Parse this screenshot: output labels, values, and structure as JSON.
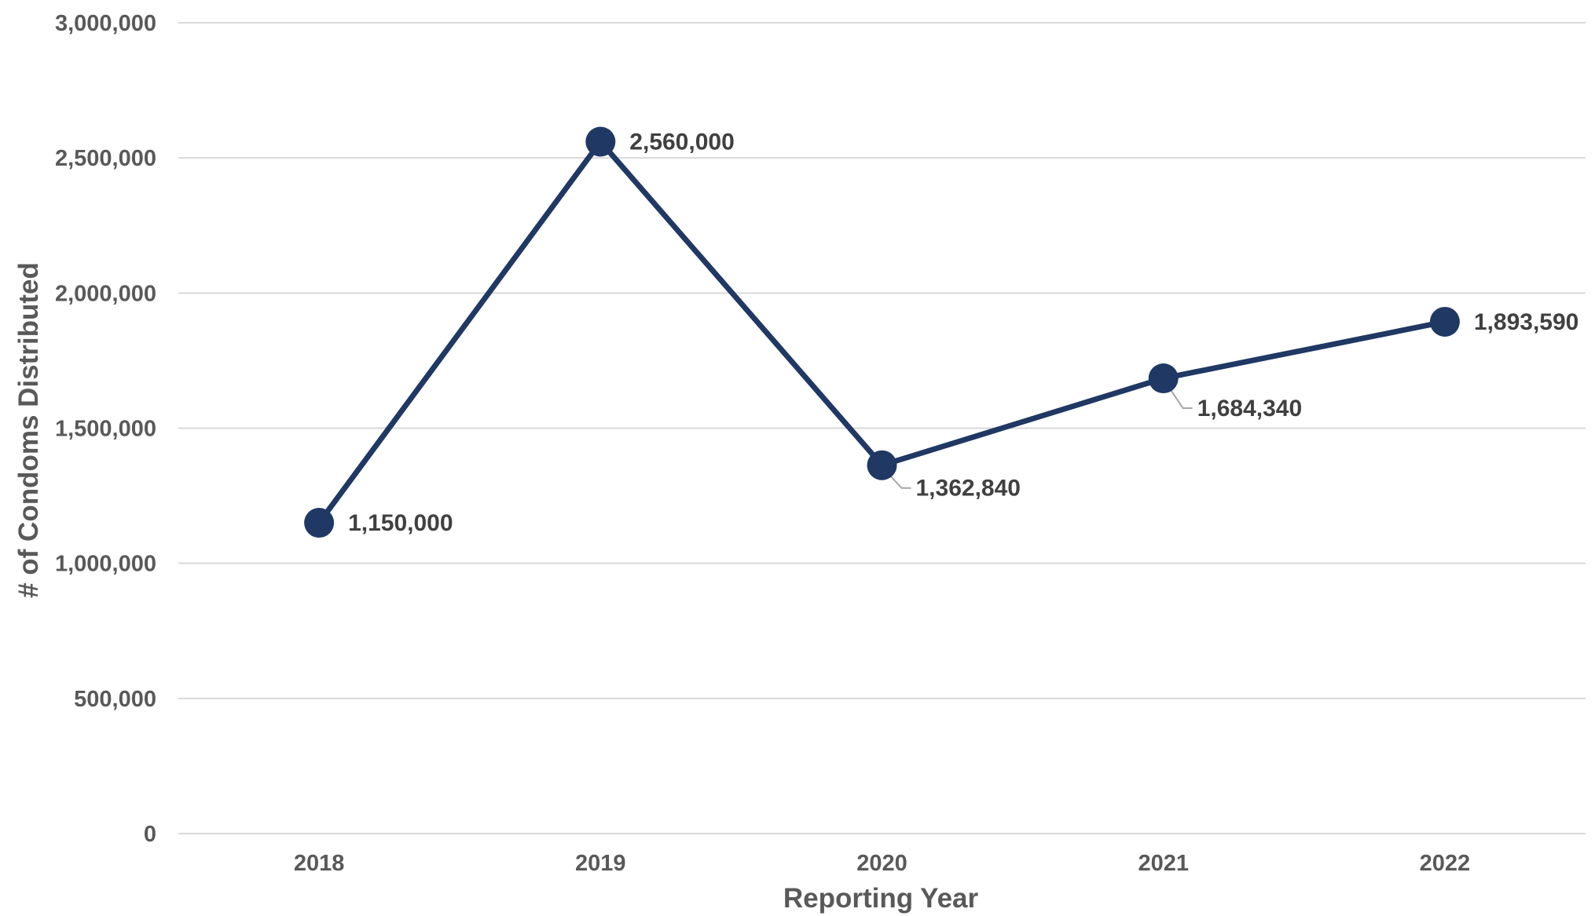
{
  "chart_data": {
    "type": "line",
    "title": "",
    "xlabel": "Reporting Year",
    "ylabel": "# of Condoms Distributed",
    "categories": [
      "2018",
      "2019",
      "2020",
      "2021",
      "2022"
    ],
    "series": [
      {
        "values": [
          1150000,
          2560000,
          1362840,
          1684340,
          1893590
        ],
        "data_labels": [
          "1,150,000",
          "2,560,000",
          "1,362,840",
          "1,684,340",
          "1,893,590"
        ]
      }
    ],
    "ylim": [
      0,
      3000000
    ],
    "y_ticks": [
      0,
      500000,
      1000000,
      1500000,
      2000000,
      2500000,
      3000000
    ],
    "y_tick_labels": [
      "0",
      "500,000",
      "1,000,000",
      "1,500,000",
      "2,000,000",
      "2,500,000",
      "3,000,000"
    ],
    "grid": true,
    "legend": "none",
    "colors": {
      "series_line": "#1f3864",
      "gridline": "#d9d9d9",
      "tick_text": "#595959",
      "label_text": "#404040",
      "leader_line": "#a6a6a6"
    }
  }
}
